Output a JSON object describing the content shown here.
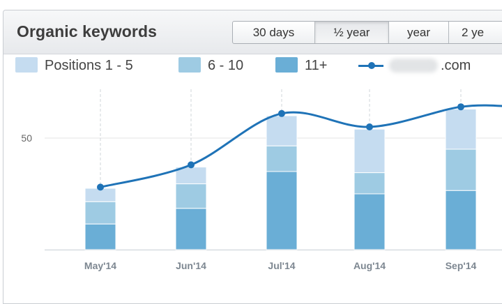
{
  "widget": {
    "title": "Organic keywords",
    "range_buttons": [
      "30 days",
      "½ year",
      "year",
      "2 ye"
    ],
    "selected_range": "½ year"
  },
  "legend": {
    "items": [
      {
        "label": "Positions 1 - 5",
        "color": "#c5dcf0"
      },
      {
        "label": "6 - 10",
        "color": "#9ecbe3"
      },
      {
        "label": "11+",
        "color": "#6aaed6"
      }
    ],
    "line_label_suffix": ".com",
    "line_color": "#1f73b7"
  },
  "chart_data": {
    "type": "bar",
    "categories": [
      "May'14",
      "Jun'14",
      "Jul'14",
      "Aug'14",
      "Sep'14"
    ],
    "series": [
      {
        "name": "11+",
        "values": [
          11.5,
          18.5,
          35,
          25,
          26.5
        ]
      },
      {
        "name": "6 - 10",
        "values": [
          10,
          11,
          11.5,
          9.5,
          18.5
        ]
      },
      {
        "name": "Positions 1 - 5",
        "values": [
          6,
          7.5,
          13.5,
          19.5,
          18
        ]
      }
    ],
    "line": {
      "values": [
        28,
        38,
        61,
        55,
        64
      ],
      "name_suffix": ".com"
    },
    "y_ticks": [
      50
    ],
    "ylim": [
      0,
      68
    ],
    "grid": "horizontal",
    "legend_position": "top"
  }
}
